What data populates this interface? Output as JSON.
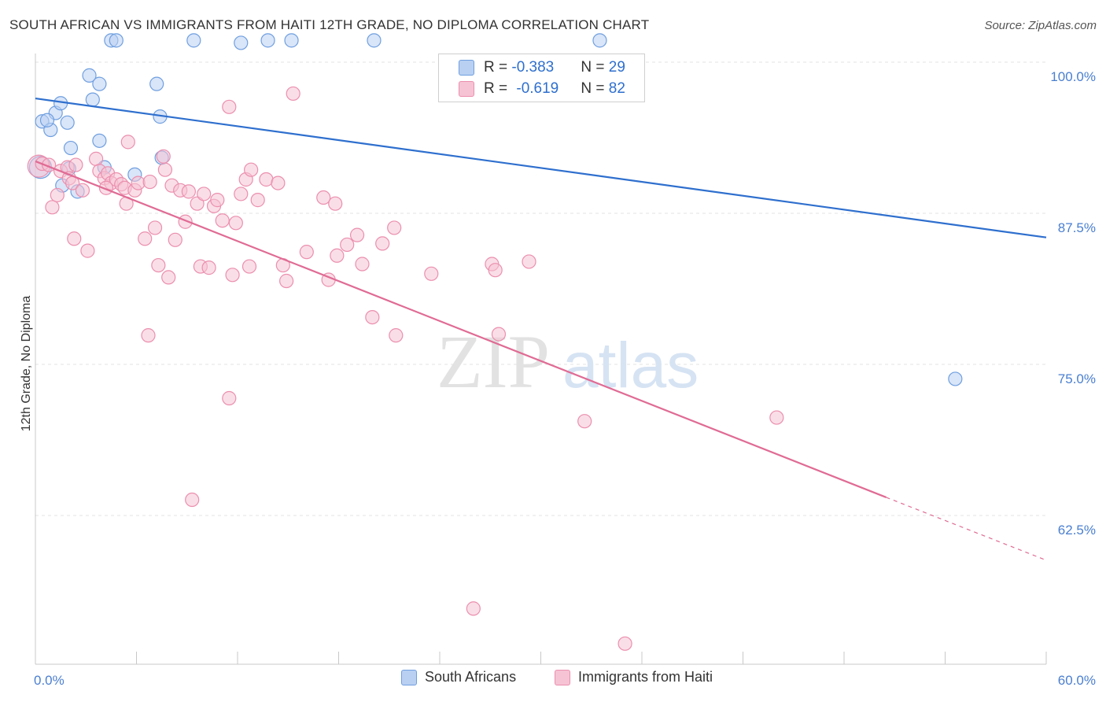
{
  "title": "SOUTH AFRICAN VS IMMIGRANTS FROM HAITI 12TH GRADE, NO DIPLOMA CORRELATION CHART",
  "source": "Source: ZipAtlas.com",
  "watermark": {
    "zip": "ZIP",
    "atlas": "atlas"
  },
  "chart_data": {
    "type": "scatter",
    "xlabel": "",
    "ylabel": "12th Grade, No Diploma",
    "xlim": [
      0,
      60
    ],
    "ylim": [
      51,
      103
    ],
    "x_tick_labels": {
      "min": "0.0%",
      "max": "60.0%"
    },
    "y_ticks": [
      {
        "value": 100,
        "label": "100.0%"
      },
      {
        "value": 87.5,
        "label": "87.5%"
      },
      {
        "value": 75,
        "label": "75.0%"
      },
      {
        "value": 62.5,
        "label": "62.5%"
      }
    ],
    "grid": true,
    "legend_top": [
      {
        "r_label": "R = ",
        "r_value": "-0.383",
        "n_label": "N = ",
        "n_value": "29"
      },
      {
        "r_label": "R = ",
        "r_value": "-0.619",
        "n_label": "N = ",
        "n_value": "82"
      }
    ],
    "series": [
      {
        "name": "South Africans",
        "color": "#6f9fe0",
        "fill": "#b9d0f2",
        "line_color": "#2e6fce",
        "trend": {
          "x": [
            0,
            60
          ],
          "y": [
            97.0,
            85.5
          ]
        },
        "points": [
          [
            0.3,
            91.3
          ],
          [
            0.4,
            95.1
          ],
          [
            0.9,
            94.4
          ],
          [
            1.2,
            95.8
          ],
          [
            1.5,
            96.6
          ],
          [
            0.7,
            95.2
          ],
          [
            1.9,
            95.0
          ],
          [
            2.1,
            92.9
          ],
          [
            2.5,
            89.3
          ],
          [
            3.2,
            98.9
          ],
          [
            3.8,
            98.2
          ],
          [
            3.4,
            96.9
          ],
          [
            3.8,
            93.5
          ],
          [
            4.1,
            91.3
          ],
          [
            4.5,
            101.8
          ],
          [
            4.8,
            101.8
          ],
          [
            5.9,
            90.7
          ],
          [
            7.2,
            98.2
          ],
          [
            7.4,
            95.5
          ],
          [
            7.5,
            92.1
          ],
          [
            9.4,
            101.8
          ],
          [
            12.2,
            101.6
          ],
          [
            13.8,
            101.8
          ],
          [
            15.2,
            101.8
          ],
          [
            20.1,
            101.8
          ],
          [
            33.5,
            101.8
          ],
          [
            54.6,
            73.8
          ],
          [
            2.0,
            91.2
          ],
          [
            1.6,
            89.8
          ]
        ]
      },
      {
        "name": "Immigrants from Haiti",
        "color": "#eb8fae",
        "fill": "#f6c3d4",
        "line_color": "#e06b94",
        "trend": {
          "x": [
            0,
            50.5
          ],
          "y": [
            91.8,
            64.0
          ]
        },
        "trend_dashed": {
          "x": [
            50.5,
            60
          ],
          "y": [
            64.0,
            58.8
          ]
        },
        "points": [
          [
            0.2,
            91.4
          ],
          [
            0.4,
            91.6
          ],
          [
            0.8,
            91.5
          ],
          [
            1.0,
            88.0
          ],
          [
            1.3,
            89.0
          ],
          [
            1.5,
            91.0
          ],
          [
            1.9,
            91.3
          ],
          [
            2.0,
            90.4
          ],
          [
            2.2,
            90.0
          ],
          [
            2.4,
            91.5
          ],
          [
            2.8,
            89.4
          ],
          [
            2.3,
            85.4
          ],
          [
            3.1,
            84.4
          ],
          [
            3.6,
            92.0
          ],
          [
            3.8,
            91.0
          ],
          [
            4.1,
            90.4
          ],
          [
            4.3,
            90.8
          ],
          [
            4.5,
            90.0
          ],
          [
            4.8,
            90.3
          ],
          [
            5.1,
            89.9
          ],
          [
            5.3,
            89.6
          ],
          [
            5.4,
            88.3
          ],
          [
            5.5,
            93.4
          ],
          [
            5.9,
            89.4
          ],
          [
            6.1,
            90.0
          ],
          [
            6.5,
            85.4
          ],
          [
            6.7,
            77.4
          ],
          [
            6.8,
            90.1
          ],
          [
            7.1,
            86.3
          ],
          [
            7.3,
            83.2
          ],
          [
            7.6,
            92.2
          ],
          [
            7.7,
            91.1
          ],
          [
            7.9,
            82.2
          ],
          [
            8.1,
            89.8
          ],
          [
            8.3,
            85.3
          ],
          [
            8.6,
            89.4
          ],
          [
            8.9,
            86.8
          ],
          [
            9.1,
            89.3
          ],
          [
            9.3,
            63.8
          ],
          [
            9.6,
            88.3
          ],
          [
            9.8,
            83.1
          ],
          [
            10.0,
            89.1
          ],
          [
            10.3,
            83.0
          ],
          [
            10.6,
            88.1
          ],
          [
            10.8,
            88.6
          ],
          [
            11.1,
            86.9
          ],
          [
            11.5,
            96.3
          ],
          [
            11.7,
            82.4
          ],
          [
            11.9,
            86.7
          ],
          [
            12.2,
            89.1
          ],
          [
            11.5,
            72.2
          ],
          [
            12.5,
            90.3
          ],
          [
            12.7,
            83.1
          ],
          [
            12.8,
            91.1
          ],
          [
            13.2,
            88.6
          ],
          [
            13.7,
            90.3
          ],
          [
            14.4,
            90.0
          ],
          [
            14.7,
            83.2
          ],
          [
            14.9,
            81.9
          ],
          [
            15.3,
            97.4
          ],
          [
            16.1,
            84.3
          ],
          [
            17.1,
            88.8
          ],
          [
            17.8,
            88.3
          ],
          [
            17.4,
            82.0
          ],
          [
            17.9,
            84.0
          ],
          [
            18.5,
            84.9
          ],
          [
            19.1,
            85.7
          ],
          [
            19.4,
            83.3
          ],
          [
            20.0,
            78.9
          ],
          [
            20.6,
            85.0
          ],
          [
            21.3,
            86.3
          ],
          [
            21.4,
            77.4
          ],
          [
            23.5,
            82.5
          ],
          [
            26.0,
            54.8
          ],
          [
            27.1,
            83.3
          ],
          [
            27.3,
            82.8
          ],
          [
            27.5,
            77.5
          ],
          [
            29.3,
            83.5
          ],
          [
            32.6,
            70.3
          ],
          [
            44.0,
            70.6
          ],
          [
            35.0,
            51.9
          ],
          [
            4.2,
            89.6
          ]
        ]
      }
    ]
  }
}
